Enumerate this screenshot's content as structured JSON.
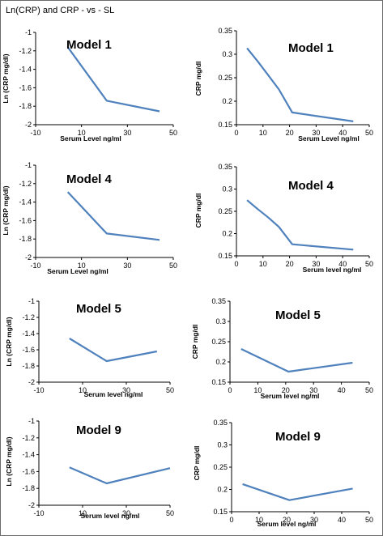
{
  "page": {
    "title": "Ln(CRP) and CRP - vs - SL"
  },
  "chart_data": [
    {
      "type": "line",
      "label": "Model 1",
      "xlabel": "Serum Level  ng/ml",
      "ylabel": "Ln (CRP mg/dl)",
      "xlim": [
        -10,
        50
      ],
      "ylim": [
        -2,
        -1
      ],
      "xticks": [
        -10,
        10,
        30,
        50
      ],
      "yticks": [
        -2,
        -1.8,
        -1.6,
        -1.4,
        -1.2,
        -1
      ],
      "series": [
        {
          "x": [
            4,
            21,
            44
          ],
          "y": [
            -1.16,
            -1.74,
            -1.855
          ]
        }
      ],
      "color": "#4f81bd"
    },
    {
      "type": "line",
      "label": "Model 1",
      "xlabel": "Serum Level  ng/ml",
      "ylabel": "CRP  mg/dl",
      "xlim": [
        0,
        50
      ],
      "ylim": [
        0.15,
        0.35
      ],
      "xticks": [
        0,
        10,
        20,
        30,
        40,
        50
      ],
      "yticks": [
        0.15,
        0.2,
        0.25,
        0.3,
        0.35
      ],
      "series": [
        {
          "x": [
            4,
            8,
            12,
            16,
            21,
            44
          ],
          "y": [
            0.313,
            0.285,
            0.255,
            0.225,
            0.176,
            0.157
          ]
        }
      ],
      "color": "#4f81bd"
    },
    {
      "type": "line",
      "label": "Model 4",
      "xlabel": "Serum Level  ng/ml",
      "ylabel": "Ln (CRP mg/dl)",
      "xlim": [
        -10,
        50
      ],
      "ylim": [
        -2,
        -1
      ],
      "xticks": [
        -10,
        10,
        30,
        50
      ],
      "yticks": [
        -2,
        -1.8,
        -1.6,
        -1.4,
        -1.2,
        -1
      ],
      "series": [
        {
          "x": [
            4,
            21,
            44
          ],
          "y": [
            -1.29,
            -1.74,
            -1.81
          ]
        }
      ],
      "color": "#4f81bd"
    },
    {
      "type": "line",
      "label": "Model 4",
      "xlabel": "Serum level  ng/ml",
      "ylabel": "CRP  mg/dl",
      "xlim": [
        0,
        50
      ],
      "ylim": [
        0.15,
        0.35
      ],
      "xticks": [
        0,
        10,
        20,
        30,
        40,
        50
      ],
      "yticks": [
        0.15,
        0.2,
        0.25,
        0.3,
        0.35
      ],
      "series": [
        {
          "x": [
            4,
            8,
            12,
            16,
            21,
            44
          ],
          "y": [
            0.275,
            0.255,
            0.236,
            0.215,
            0.176,
            0.164
          ]
        }
      ],
      "color": "#4f81bd"
    },
    {
      "type": "line",
      "label": "Model 5",
      "xlabel": "Serum level  ng/ml",
      "ylabel": "Ln (CRP  mg/dl)",
      "xlim": [
        -10,
        50
      ],
      "ylim": [
        -2,
        -1
      ],
      "xticks": [
        -10,
        10,
        30,
        50
      ],
      "yticks": [
        -2,
        -1.8,
        -1.6,
        -1.4,
        -1.2,
        -1
      ],
      "series": [
        {
          "x": [
            4,
            21,
            44
          ],
          "y": [
            -1.46,
            -1.74,
            -1.62
          ]
        }
      ],
      "color": "#4f81bd"
    },
    {
      "type": "line",
      "label": "Model 5",
      "xlabel": "Serum level  ng/ml",
      "ylabel": "CRP  mg/dl",
      "xlim": [
        0,
        50
      ],
      "ylim": [
        0.15,
        0.35
      ],
      "xticks": [
        0,
        10,
        20,
        30,
        40,
        50
      ],
      "yticks": [
        0.15,
        0.2,
        0.25,
        0.3,
        0.35
      ],
      "series": [
        {
          "x": [
            4,
            21,
            44
          ],
          "y": [
            0.232,
            0.176,
            0.198
          ]
        }
      ],
      "color": "#4f81bd"
    },
    {
      "type": "line",
      "label": "Model 9",
      "xlabel": "Serum level  ng/ml",
      "ylabel": "Ln (CRP  mg/dl)",
      "xlim": [
        -10,
        50
      ],
      "ylim": [
        -2,
        -1
      ],
      "xticks": [
        -10,
        10,
        30,
        50
      ],
      "yticks": [
        -2,
        -1.8,
        -1.6,
        -1.4,
        -1.2,
        -1
      ],
      "series": [
        {
          "x": [
            4,
            21,
            50
          ],
          "y": [
            -1.55,
            -1.74,
            -1.56
          ]
        }
      ],
      "color": "#4f81bd"
    },
    {
      "type": "line",
      "label": "Model 9",
      "xlabel": "Serum level  ng/ml",
      "ylabel": "CRP  mg/dl",
      "xlim": [
        0,
        50
      ],
      "ylim": [
        0.15,
        0.35
      ],
      "xticks": [
        0,
        10,
        20,
        30,
        40,
        50
      ],
      "yticks": [
        0.15,
        0.2,
        0.25,
        0.3,
        0.35
      ],
      "series": [
        {
          "x": [
            4,
            21,
            44
          ],
          "y": [
            0.212,
            0.176,
            0.202
          ]
        }
      ],
      "color": "#4f81bd"
    }
  ]
}
